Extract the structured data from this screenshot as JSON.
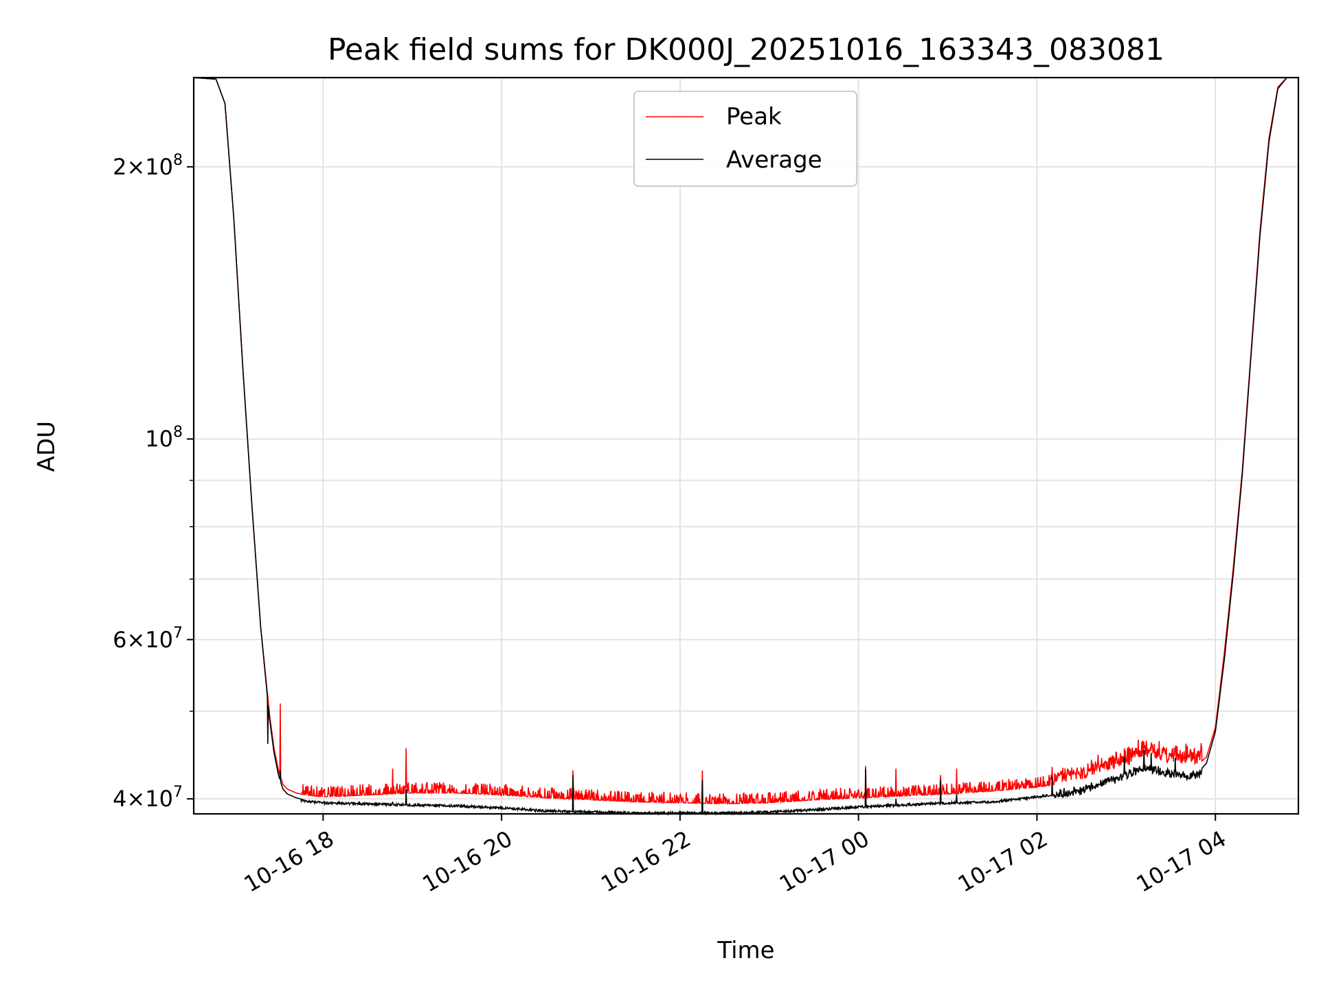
{
  "chart_data": {
    "type": "line",
    "title": "Peak field sums for DK000J_20251016_163343_083081",
    "xlabel": "Time",
    "ylabel": "ADU",
    "yscale": "log",
    "xlim_hours": [
      16.55,
      28.93
    ],
    "ylim": [
      38500000,
      251000000
    ],
    "grid": true,
    "legend_position": "upper-center",
    "x_ticks": [
      {
        "label": "10-16 18",
        "hour": 18
      },
      {
        "label": "10-16 20",
        "hour": 20
      },
      {
        "label": "10-16 22",
        "hour": 22
      },
      {
        "label": "10-17 00",
        "hour": 24
      },
      {
        "label": "10-17 02",
        "hour": 26
      },
      {
        "label": "10-17 04",
        "hour": 28
      }
    ],
    "y_ticks": [
      {
        "mantissa": "2",
        "exponent": "8",
        "value": 200000000
      },
      {
        "mantissa": "",
        "exponent": "8",
        "value": 100000000
      },
      {
        "mantissa": "6",
        "exponent": "7",
        "value": 60000000
      },
      {
        "mantissa": "4",
        "exponent": "7",
        "value": 40000000
      }
    ],
    "y_minor_ticks": [
      50000000,
      70000000,
      80000000,
      90000000
    ],
    "series": [
      {
        "name": "Peak",
        "color": "#ff0000",
        "x": [
          16.55,
          16.8,
          16.9,
          17.0,
          17.1,
          17.2,
          17.3,
          17.4,
          17.45,
          17.5,
          17.55,
          17.6,
          17.7,
          17.8,
          18.0,
          18.5,
          19.0,
          19.5,
          20.0,
          20.5,
          21.0,
          21.5,
          22.0,
          22.5,
          23.0,
          23.5,
          24.0,
          24.5,
          25.0,
          25.5,
          26.0,
          26.5,
          26.9,
          27.0,
          27.2,
          27.4,
          27.5,
          27.6,
          27.7,
          27.8,
          27.9,
          28.0,
          28.1,
          28.2,
          28.3,
          28.4,
          28.5,
          28.6,
          28.7,
          28.8,
          28.93
        ],
        "values": [
          251000000,
          250000000,
          235000000,
          175000000,
          120000000,
          85000000,
          62000000,
          49500000,
          45500000,
          43000000,
          41500000,
          41000000,
          40600000,
          40400000,
          40200000,
          40400000,
          40600000,
          40600000,
          40400000,
          40100000,
          39900000,
          39700000,
          39600000,
          39500000,
          39600000,
          39900000,
          40100000,
          40300000,
          40500000,
          40800000,
          41200000,
          42000000,
          43200000,
          43300000,
          44300000,
          44000000,
          43800000,
          43600000,
          43500000,
          43600000,
          44500000,
          48000000,
          58000000,
          72000000,
          92000000,
          125000000,
          170000000,
          215000000,
          245000000,
          251000000,
          251000000
        ]
      },
      {
        "name": "Average",
        "color": "#000000",
        "x": [
          16.55,
          16.8,
          16.9,
          17.0,
          17.1,
          17.2,
          17.3,
          17.4,
          17.45,
          17.5,
          17.55,
          17.6,
          17.7,
          17.8,
          18.0,
          18.5,
          19.0,
          19.5,
          20.0,
          20.5,
          21.0,
          21.5,
          22.0,
          22.5,
          23.0,
          23.5,
          24.0,
          24.5,
          25.0,
          25.5,
          26.0,
          26.5,
          26.9,
          27.0,
          27.2,
          27.4,
          27.5,
          27.6,
          27.7,
          27.8,
          27.9,
          28.0,
          28.1,
          28.2,
          28.3,
          28.4,
          28.5,
          28.6,
          28.7,
          28.8,
          28.93
        ],
        "values": [
          251000000,
          250000000,
          235000000,
          175000000,
          120000000,
          85000000,
          62000000,
          49000000,
          45000000,
          42500000,
          41000000,
          40500000,
          40100000,
          39900000,
          39700000,
          39600000,
          39500000,
          39400000,
          39200000,
          38900000,
          38800000,
          38700000,
          38700000,
          38700000,
          38800000,
          39000000,
          39300000,
          39500000,
          39700000,
          39800000,
          40300000,
          41000000,
          42300000,
          42600000,
          43500000,
          43000000,
          42800000,
          42600000,
          42500000,
          42700000,
          43800000,
          47500000,
          57000000,
          71000000,
          91000000,
          124000000,
          168000000,
          213000000,
          244000000,
          251000000,
          251000000
        ]
      }
    ],
    "spikes": [
      {
        "hour": 17.38,
        "peak": 52000000,
        "avg": 46000000
      },
      {
        "hour": 17.52,
        "peak": 51000000,
        "avg": 43000000
      },
      {
        "hour": 18.78,
        "peak": 43200000,
        "avg": 39700000
      },
      {
        "hour": 18.93,
        "peak": 45500000,
        "avg": 41000000
      },
      {
        "hour": 20.8,
        "peak": 43000000,
        "avg": 42500000
      },
      {
        "hour": 22.25,
        "peak": 43000000,
        "avg": 42000000
      },
      {
        "hour": 24.08,
        "peak": 43500000,
        "avg": 43200000
      },
      {
        "hour": 24.42,
        "peak": 43200000,
        "avg": 40000000
      },
      {
        "hour": 24.92,
        "peak": 42500000,
        "avg": 42000000
      },
      {
        "hour": 25.1,
        "peak": 43200000,
        "avg": 40500000
      },
      {
        "hour": 26.17,
        "peak": 43400000,
        "avg": 42300000
      },
      {
        "hour": 26.98,
        "peak": 45500000,
        "avg": 44500000
      },
      {
        "hour": 27.2,
        "peak": 46000000,
        "avg": 45300000
      },
      {
        "hour": 27.28,
        "peak": 46000000,
        "avg": 45000000
      },
      {
        "hour": 27.55,
        "peak": 45000000,
        "avg": 44400000
      }
    ]
  }
}
